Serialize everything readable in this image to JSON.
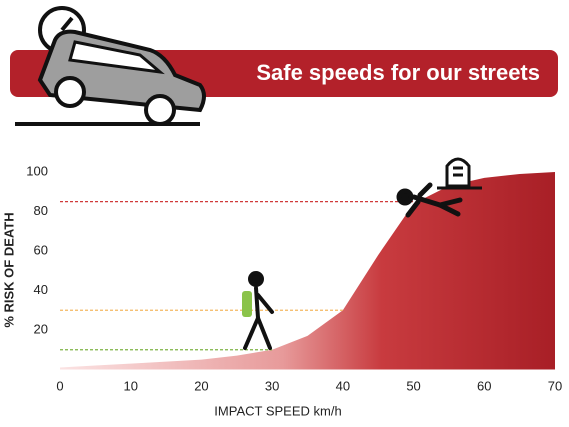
{
  "chart_data": {
    "type": "area",
    "title": "Safe speeds for our streets",
    "x_label": "IMPACT SPEED km/h",
    "y_label": "% RISK OF DEATH",
    "x": [
      0,
      5,
      10,
      15,
      20,
      25,
      30,
      35,
      40,
      45,
      50,
      55,
      60,
      65,
      70
    ],
    "values": [
      1,
      2,
      3,
      4,
      5,
      7,
      10,
      17,
      30,
      58,
      84,
      93,
      97,
      99,
      100
    ],
    "xlim": [
      0,
      70
    ],
    "xticks": [
      0,
      10,
      20,
      30,
      40,
      50,
      60,
      70
    ],
    "ylim": [
      0,
      100
    ],
    "yticks": [
      20,
      40,
      60,
      80,
      100
    ],
    "color": "#b3212a",
    "banner_color": "#b3212a",
    "reference_lines": [
      {
        "value": 10,
        "x": 30,
        "color": "#7cb342"
      },
      {
        "value": 30,
        "x": 40,
        "color": "#f4b860"
      },
      {
        "value": 85,
        "x": 50,
        "color": "#d03a3a"
      }
    ]
  }
}
